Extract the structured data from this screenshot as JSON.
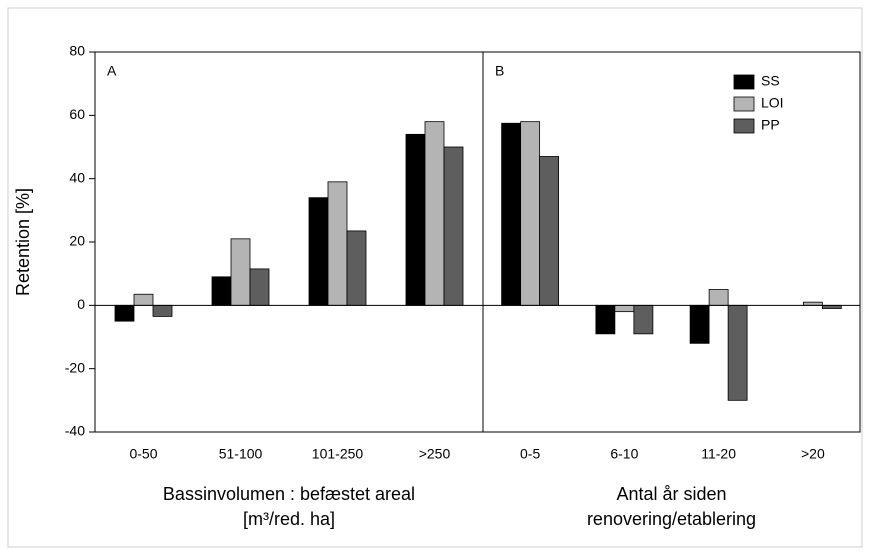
{
  "chart_data": [
    {
      "type": "bar",
      "panel_label": "A",
      "y_label": "Retention [%]",
      "x_label": [
        "Bassinvolumen : befæstet areal",
        "[m³/red. ha]"
      ],
      "categories": [
        "0-50",
        "51-100",
        "101-250",
        ">250"
      ],
      "series": [
        {
          "name": "SS",
          "color": "#000000",
          "values": [
            -5,
            9,
            34,
            54
          ]
        },
        {
          "name": "LOI",
          "color": "#b4b4b4",
          "values": [
            3.5,
            21,
            39,
            58
          ]
        },
        {
          "name": "PP",
          "color": "#5e5e5e",
          "values": [
            -3.5,
            11.5,
            23.5,
            50
          ]
        }
      ],
      "ylim": [
        -40,
        80
      ],
      "yticks": [
        -40,
        -20,
        0,
        20,
        40,
        60,
        80
      ]
    },
    {
      "type": "bar",
      "panel_label": "B",
      "x_label": [
        "Antal år siden",
        "renovering/etablering"
      ],
      "categories": [
        "0-5",
        "6-10",
        "11-20",
        ">20"
      ],
      "series": [
        {
          "name": "SS",
          "color": "#000000",
          "values": [
            57.5,
            -9,
            -12,
            0
          ]
        },
        {
          "name": "LOI",
          "color": "#b4b4b4",
          "values": [
            58,
            -2,
            5,
            1
          ]
        },
        {
          "name": "PP",
          "color": "#5e5e5e",
          "values": [
            47,
            -9,
            -30,
            -1
          ]
        }
      ],
      "ylim": [
        -40,
        80
      ],
      "legend": "upper right"
    }
  ]
}
